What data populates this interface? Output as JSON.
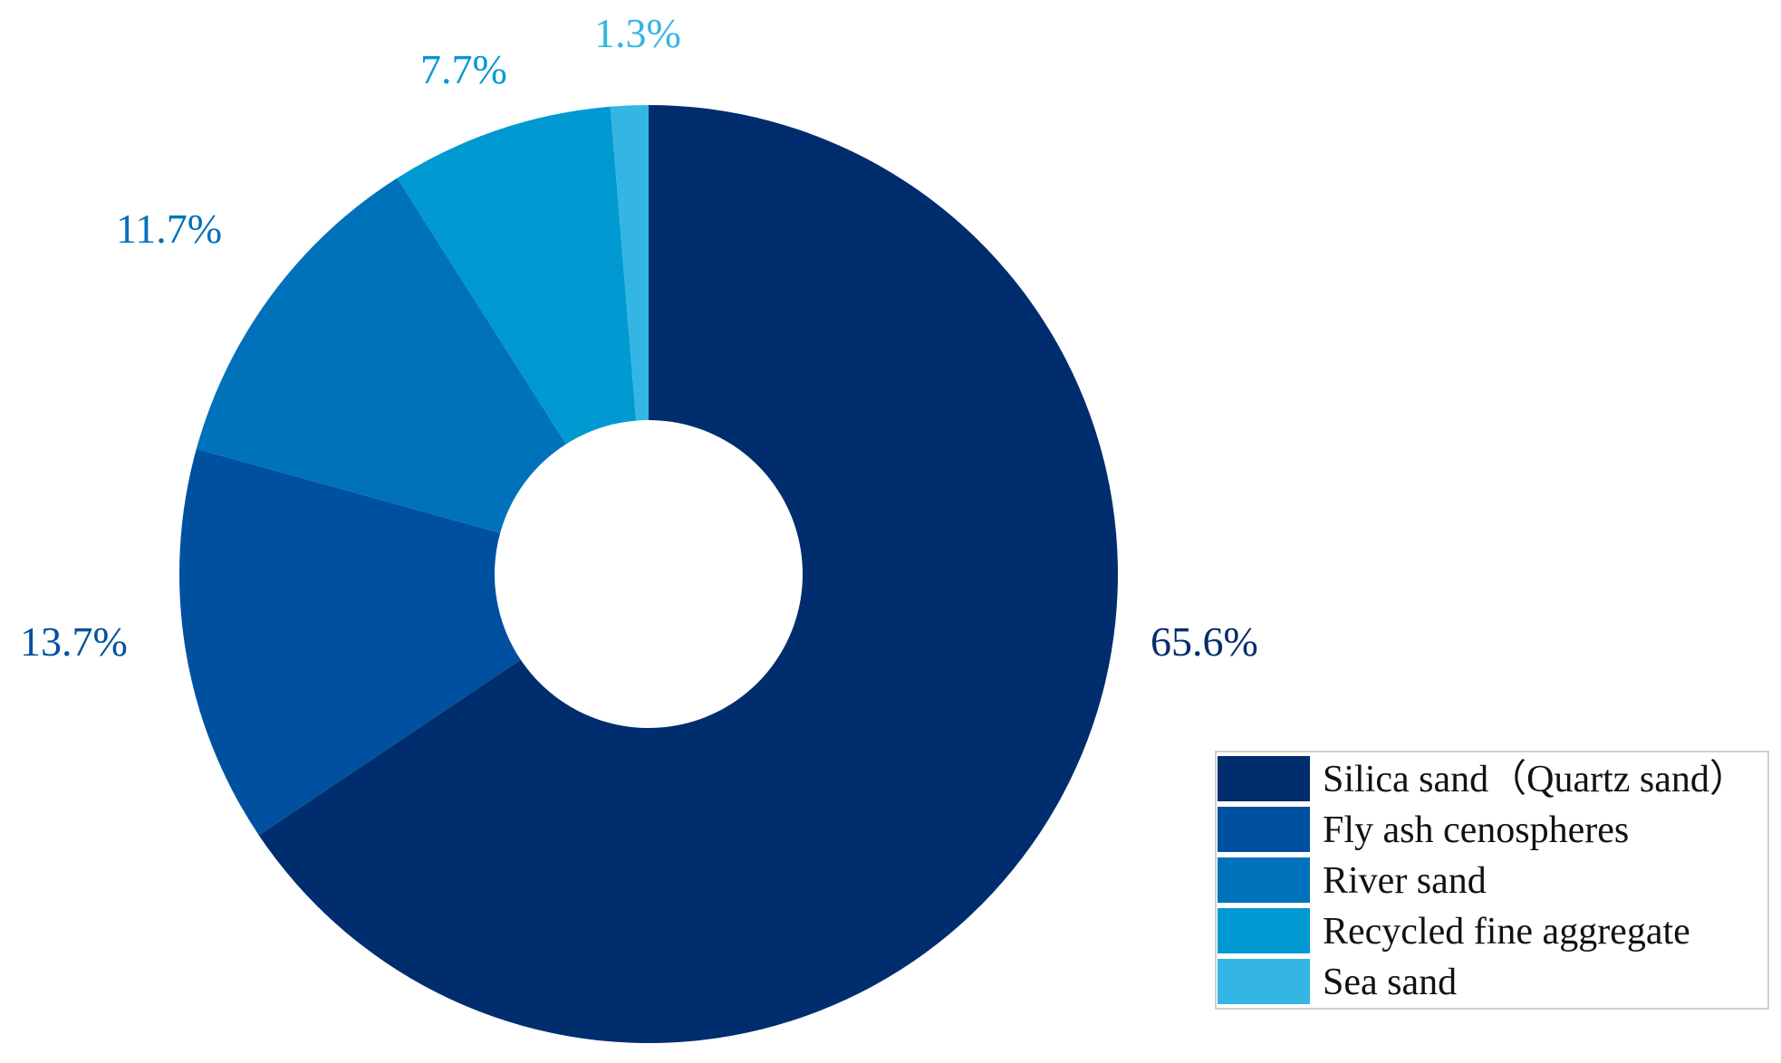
{
  "chart_data": {
    "type": "pie",
    "variant": "donut",
    "title": "",
    "categories": [
      "Silica sand（Quartz sand）",
      "Fly ash cenospheres",
      "River sand",
      "Recycled fine aggregate",
      "Sea sand"
    ],
    "values": [
      65.6,
      13.7,
      11.7,
      7.7,
      1.3
    ],
    "data_labels": [
      "65.6%",
      "13.7%",
      "11.7%",
      "7.7%",
      "1.3%"
    ],
    "colors": [
      "#002d6d",
      "#0050a0",
      "#0072bc",
      "#0099d2",
      "#33b6e4"
    ],
    "start_angle": "12 o'clock",
    "direction": "clockwise",
    "legend_position": "bottom-right"
  }
}
